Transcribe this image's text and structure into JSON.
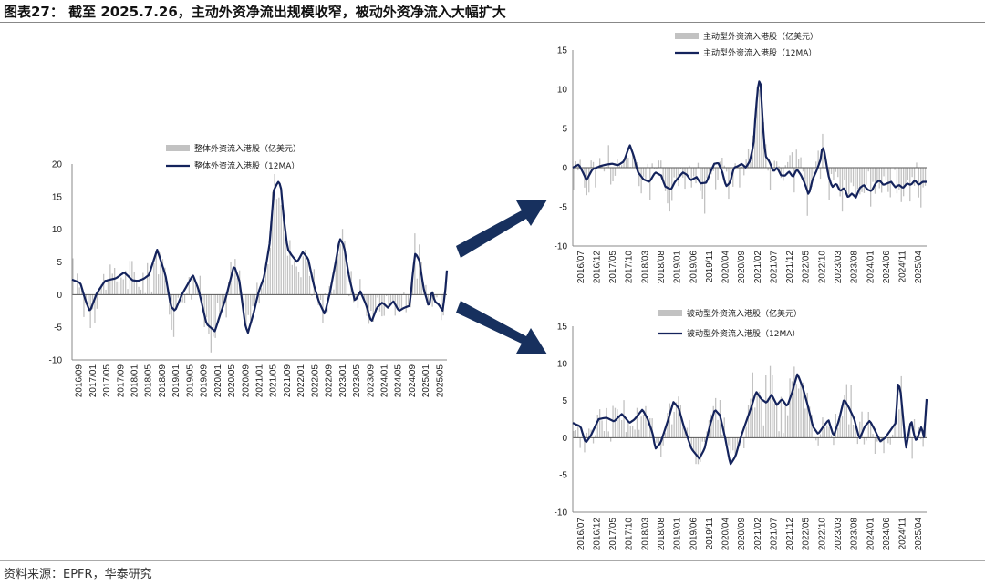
{
  "header": {
    "title": "图表27：  截至 2025.7.26，主动外资净流出规模收窄，被动外资净流入大幅扩大"
  },
  "footer": {
    "source": "资料来源：EPFR，华泰研究"
  },
  "colors": {
    "bar": "#c2c2c2",
    "line": "#14235c",
    "arrow": "#17305e",
    "axis": "#888888"
  },
  "chart_data": [
    {
      "id": "total",
      "type": "bar+line",
      "legend": [
        "整体外资流入港股（亿美元）",
        "整体外资流入港股（12MA）"
      ],
      "ylim": [
        -10,
        20
      ],
      "yticks": [
        -10,
        -5,
        0,
        5,
        10,
        15,
        20
      ],
      "xticks": [
        "2016/09",
        "2017/01",
        "2017/05",
        "2017/09",
        "2018/01",
        "2018/05",
        "2018/09",
        "2019/01",
        "2019/05",
        "2019/09",
        "2020/01",
        "2020/05",
        "2020/09",
        "2021/01",
        "2021/05",
        "2021/09",
        "2022/01",
        "2022/05",
        "2022/09",
        "2023/01",
        "2023/05",
        "2023/09",
        "2024/01",
        "2024/05",
        "2024/09",
        "2025/01",
        "2025/05"
      ],
      "line_keypoints": [
        [
          0,
          2.3
        ],
        [
          0.03,
          1.8
        ],
        [
          0.05,
          -1.0
        ],
        [
          0.065,
          -2.6
        ],
        [
          0.09,
          0.2
        ],
        [
          0.12,
          2.1
        ],
        [
          0.16,
          2.5
        ],
        [
          0.19,
          3.4
        ],
        [
          0.22,
          2.2
        ],
        [
          0.24,
          2.1
        ],
        [
          0.26,
          2.4
        ],
        [
          0.28,
          3.0
        ],
        [
          0.31,
          6.9
        ],
        [
          0.34,
          3.0
        ],
        [
          0.36,
          -1.8
        ],
        [
          0.375,
          -2.5
        ],
        [
          0.4,
          0.0
        ],
        [
          0.44,
          3.0
        ],
        [
          0.46,
          0.9
        ],
        [
          0.49,
          -4.5
        ],
        [
          0.52,
          -5.6
        ],
        [
          0.54,
          -3.0
        ],
        [
          0.56,
          -0.5
        ],
        [
          0.59,
          4.5
        ],
        [
          0.61,
          2.0
        ],
        [
          0.63,
          -4.5
        ],
        [
          0.64,
          -5.9
        ],
        [
          0.66,
          -3.0
        ],
        [
          0.68,
          0.5
        ],
        [
          0.7,
          2.8
        ],
        [
          0.72,
          8.0
        ],
        [
          0.735,
          16.0
        ],
        [
          0.75,
          17.3
        ],
        [
          0.76,
          16.8
        ],
        [
          0.77,
          12.0
        ],
        [
          0.785,
          7.0
        ],
        [
          0.8,
          6.0
        ],
        [
          0.82,
          5.0
        ],
        [
          0.84,
          6.5
        ],
        [
          0.86,
          5.5
        ],
        [
          0.88,
          1.5
        ],
        [
          0.9,
          -1.2
        ],
        [
          0.92,
          -3.0
        ],
        [
          0.94,
          0.5
        ],
        [
          0.96,
          5.0
        ],
        [
          0.975,
          8.6
        ],
        [
          0.99,
          7.5
        ],
        [
          1.01,
          2.5
        ],
        [
          1.03,
          -1.0
        ],
        [
          1.05,
          0.5
        ],
        [
          1.07,
          -1.5
        ],
        [
          1.09,
          -4.2
        ],
        [
          1.11,
          -2.0
        ],
        [
          1.13,
          -1.2
        ],
        [
          1.15,
          -2.0
        ],
        [
          1.17,
          -1.0
        ],
        [
          1.19,
          -2.5
        ],
        [
          1.21,
          -2.0
        ],
        [
          1.23,
          -1.7
        ],
        [
          1.24,
          3.0
        ],
        [
          1.25,
          6.4
        ],
        [
          1.265,
          5.2
        ],
        [
          1.28,
          1.0
        ],
        [
          1.3,
          -2.0
        ],
        [
          1.31,
          0.8
        ],
        [
          1.32,
          -1.0
        ],
        [
          1.335,
          -1.5
        ],
        [
          1.35,
          -2.5
        ],
        [
          1.36,
          1.0
        ],
        [
          1.365,
          3.7
        ]
      ]
    },
    {
      "id": "active",
      "type": "bar+line",
      "legend": [
        "主动型外资流入港股（亿美元）",
        "主动型外资流入港股（12MA）"
      ],
      "ylim": [
        -10,
        15
      ],
      "yticks": [
        -10,
        -5,
        0,
        5,
        10,
        15
      ],
      "xticks": [
        "2016/07",
        "2016/12",
        "2017/05",
        "2017/10",
        "2018/03",
        "2018/08",
        "2019/01",
        "2019/06",
        "2019/11",
        "2020/04",
        "2020/09",
        "2021/02",
        "2021/07",
        "2021/12",
        "2022/05",
        "2022/10",
        "2023/03",
        "2023/08",
        "2024/01",
        "2024/06",
        "2024/11",
        "2025/04"
      ],
      "line_keypoints": [
        [
          0,
          0.0
        ],
        [
          0.03,
          0.4
        ],
        [
          0.05,
          -0.5
        ],
        [
          0.07,
          -1.6
        ],
        [
          0.1,
          -0.2
        ],
        [
          0.14,
          0.2
        ],
        [
          0.17,
          0.4
        ],
        [
          0.2,
          0.5
        ],
        [
          0.23,
          0.3
        ],
        [
          0.26,
          0.8
        ],
        [
          0.29,
          2.9
        ],
        [
          0.31,
          1.5
        ],
        [
          0.33,
          -0.5
        ],
        [
          0.36,
          -1.5
        ],
        [
          0.39,
          -1.8
        ],
        [
          0.42,
          -0.6
        ],
        [
          0.45,
          -1.0
        ],
        [
          0.47,
          -2.4
        ],
        [
          0.5,
          -2.8
        ],
        [
          0.52,
          -1.8
        ],
        [
          0.54,
          -1.2
        ],
        [
          0.56,
          -0.6
        ],
        [
          0.58,
          -0.9
        ],
        [
          0.6,
          -1.6
        ],
        [
          0.63,
          -1.2
        ],
        [
          0.65,
          -2.0
        ],
        [
          0.68,
          -1.9
        ],
        [
          0.7,
          -0.6
        ],
        [
          0.72,
          0.5
        ],
        [
          0.74,
          0.6
        ],
        [
          0.76,
          -0.5
        ],
        [
          0.78,
          -2.4
        ],
        [
          0.8,
          -1.9
        ],
        [
          0.82,
          0.0
        ],
        [
          0.84,
          0.2
        ],
        [
          0.86,
          0.5
        ],
        [
          0.88,
          0.0
        ],
        [
          0.9,
          0.8
        ],
        [
          0.92,
          3.0
        ],
        [
          0.93,
          7.0
        ],
        [
          0.945,
          11.1
        ],
        [
          0.955,
          10.8
        ],
        [
          0.97,
          4.5
        ],
        [
          0.98,
          1.5
        ],
        [
          1.0,
          0.8
        ],
        [
          1.02,
          -0.5
        ],
        [
          1.04,
          0.0
        ],
        [
          1.06,
          -1.0
        ],
        [
          1.08,
          -1.0
        ],
        [
          1.1,
          -0.5
        ],
        [
          1.12,
          -1.2
        ],
        [
          1.14,
          -0.2
        ],
        [
          1.16,
          -0.9
        ],
        [
          1.18,
          -2.0
        ],
        [
          1.2,
          -3.5
        ],
        [
          1.22,
          -1.5
        ],
        [
          1.24,
          -0.4
        ],
        [
          1.26,
          1.0
        ],
        [
          1.27,
          2.8
        ],
        [
          1.28,
          2.0
        ],
        [
          1.3,
          -1.0
        ],
        [
          1.32,
          -2.5
        ],
        [
          1.34,
          -2.0
        ],
        [
          1.36,
          -3.0
        ],
        [
          1.38,
          -2.6
        ],
        [
          1.4,
          -3.8
        ],
        [
          1.42,
          -3.3
        ],
        [
          1.44,
          -3.8
        ],
        [
          1.46,
          -2.6
        ],
        [
          1.48,
          -2.2
        ],
        [
          1.5,
          -2.8
        ],
        [
          1.52,
          -3.0
        ],
        [
          1.54,
          -2.0
        ],
        [
          1.56,
          -1.6
        ],
        [
          1.58,
          -2.2
        ],
        [
          1.6,
          -2.0
        ],
        [
          1.62,
          -1.8
        ],
        [
          1.64,
          -2.5
        ],
        [
          1.66,
          -2.2
        ],
        [
          1.68,
          -2.6
        ],
        [
          1.7,
          -2.0
        ],
        [
          1.72,
          -2.2
        ],
        [
          1.74,
          -1.6
        ],
        [
          1.76,
          -2.2
        ],
        [
          1.78,
          -1.8
        ],
        [
          1.8,
          -1.8
        ]
      ]
    },
    {
      "id": "passive",
      "type": "bar+line",
      "legend": [
        "被动型外资流入港股（亿美元）",
        "被动型外资流入港股（12MA）"
      ],
      "ylim": [
        -10,
        15
      ],
      "yticks": [
        -10,
        -5,
        0,
        5,
        10,
        15
      ],
      "xticks": [
        "2016/07",
        "2016/12",
        "2017/05",
        "2017/10",
        "2018/03",
        "2018/08",
        "2019/01",
        "2019/06",
        "2019/11",
        "2020/04",
        "2020/09",
        "2021/02",
        "2021/07",
        "2021/12",
        "2022/05",
        "2022/10",
        "2023/03",
        "2023/08",
        "2024/01",
        "2024/06",
        "2024/11",
        "2025/04"
      ],
      "line_keypoints": [
        [
          0,
          2.0
        ],
        [
          0.03,
          1.5
        ],
        [
          0.05,
          -0.7
        ],
        [
          0.07,
          0.3
        ],
        [
          0.1,
          2.5
        ],
        [
          0.13,
          2.7
        ],
        [
          0.16,
          2.2
        ],
        [
          0.19,
          3.2
        ],
        [
          0.22,
          2.0
        ],
        [
          0.24,
          2.5
        ],
        [
          0.27,
          3.8
        ],
        [
          0.29,
          2.5
        ],
        [
          0.31,
          0.5
        ],
        [
          0.32,
          -1.5
        ],
        [
          0.34,
          -0.7
        ],
        [
          0.37,
          2.5
        ],
        [
          0.39,
          4.8
        ],
        [
          0.41,
          4.0
        ],
        [
          0.43,
          1.5
        ],
        [
          0.46,
          -1.5
        ],
        [
          0.49,
          -2.8
        ],
        [
          0.51,
          -1.5
        ],
        [
          0.53,
          1.5
        ],
        [
          0.55,
          3.8
        ],
        [
          0.57,
          3.0
        ],
        [
          0.59,
          0.0
        ],
        [
          0.61,
          -3.6
        ],
        [
          0.63,
          -2.5
        ],
        [
          0.65,
          0.0
        ],
        [
          0.67,
          2.0
        ],
        [
          0.69,
          4.0
        ],
        [
          0.71,
          6.2
        ],
        [
          0.73,
          5.2
        ],
        [
          0.75,
          4.7
        ],
        [
          0.77,
          5.8
        ],
        [
          0.79,
          4.4
        ],
        [
          0.81,
          5.2
        ],
        [
          0.83,
          4.2
        ],
        [
          0.85,
          6.2
        ],
        [
          0.87,
          8.6
        ],
        [
          0.89,
          6.8
        ],
        [
          0.91,
          4.3
        ],
        [
          0.93,
          1.5
        ],
        [
          0.95,
          0.5
        ],
        [
          0.97,
          1.5
        ],
        [
          0.99,
          2.4
        ],
        [
          1.01,
          0.2
        ],
        [
          1.03,
          2.3
        ],
        [
          1.05,
          5.2
        ],
        [
          1.07,
          4.0
        ],
        [
          1.09,
          2.5
        ],
        [
          1.11,
          -0.2
        ],
        [
          1.13,
          1.5
        ],
        [
          1.15,
          2.3
        ],
        [
          1.17,
          1.0
        ],
        [
          1.19,
          -0.5
        ],
        [
          1.21,
          0.0
        ],
        [
          1.23,
          1.0
        ],
        [
          1.25,
          2.0
        ],
        [
          1.26,
          7.5
        ],
        [
          1.27,
          6.0
        ],
        [
          1.29,
          -1.5
        ],
        [
          1.31,
          2.5
        ],
        [
          1.32,
          0.5
        ],
        [
          1.33,
          -0.5
        ],
        [
          1.35,
          1.5
        ],
        [
          1.36,
          0.0
        ],
        [
          1.37,
          5.2
        ]
      ]
    }
  ]
}
